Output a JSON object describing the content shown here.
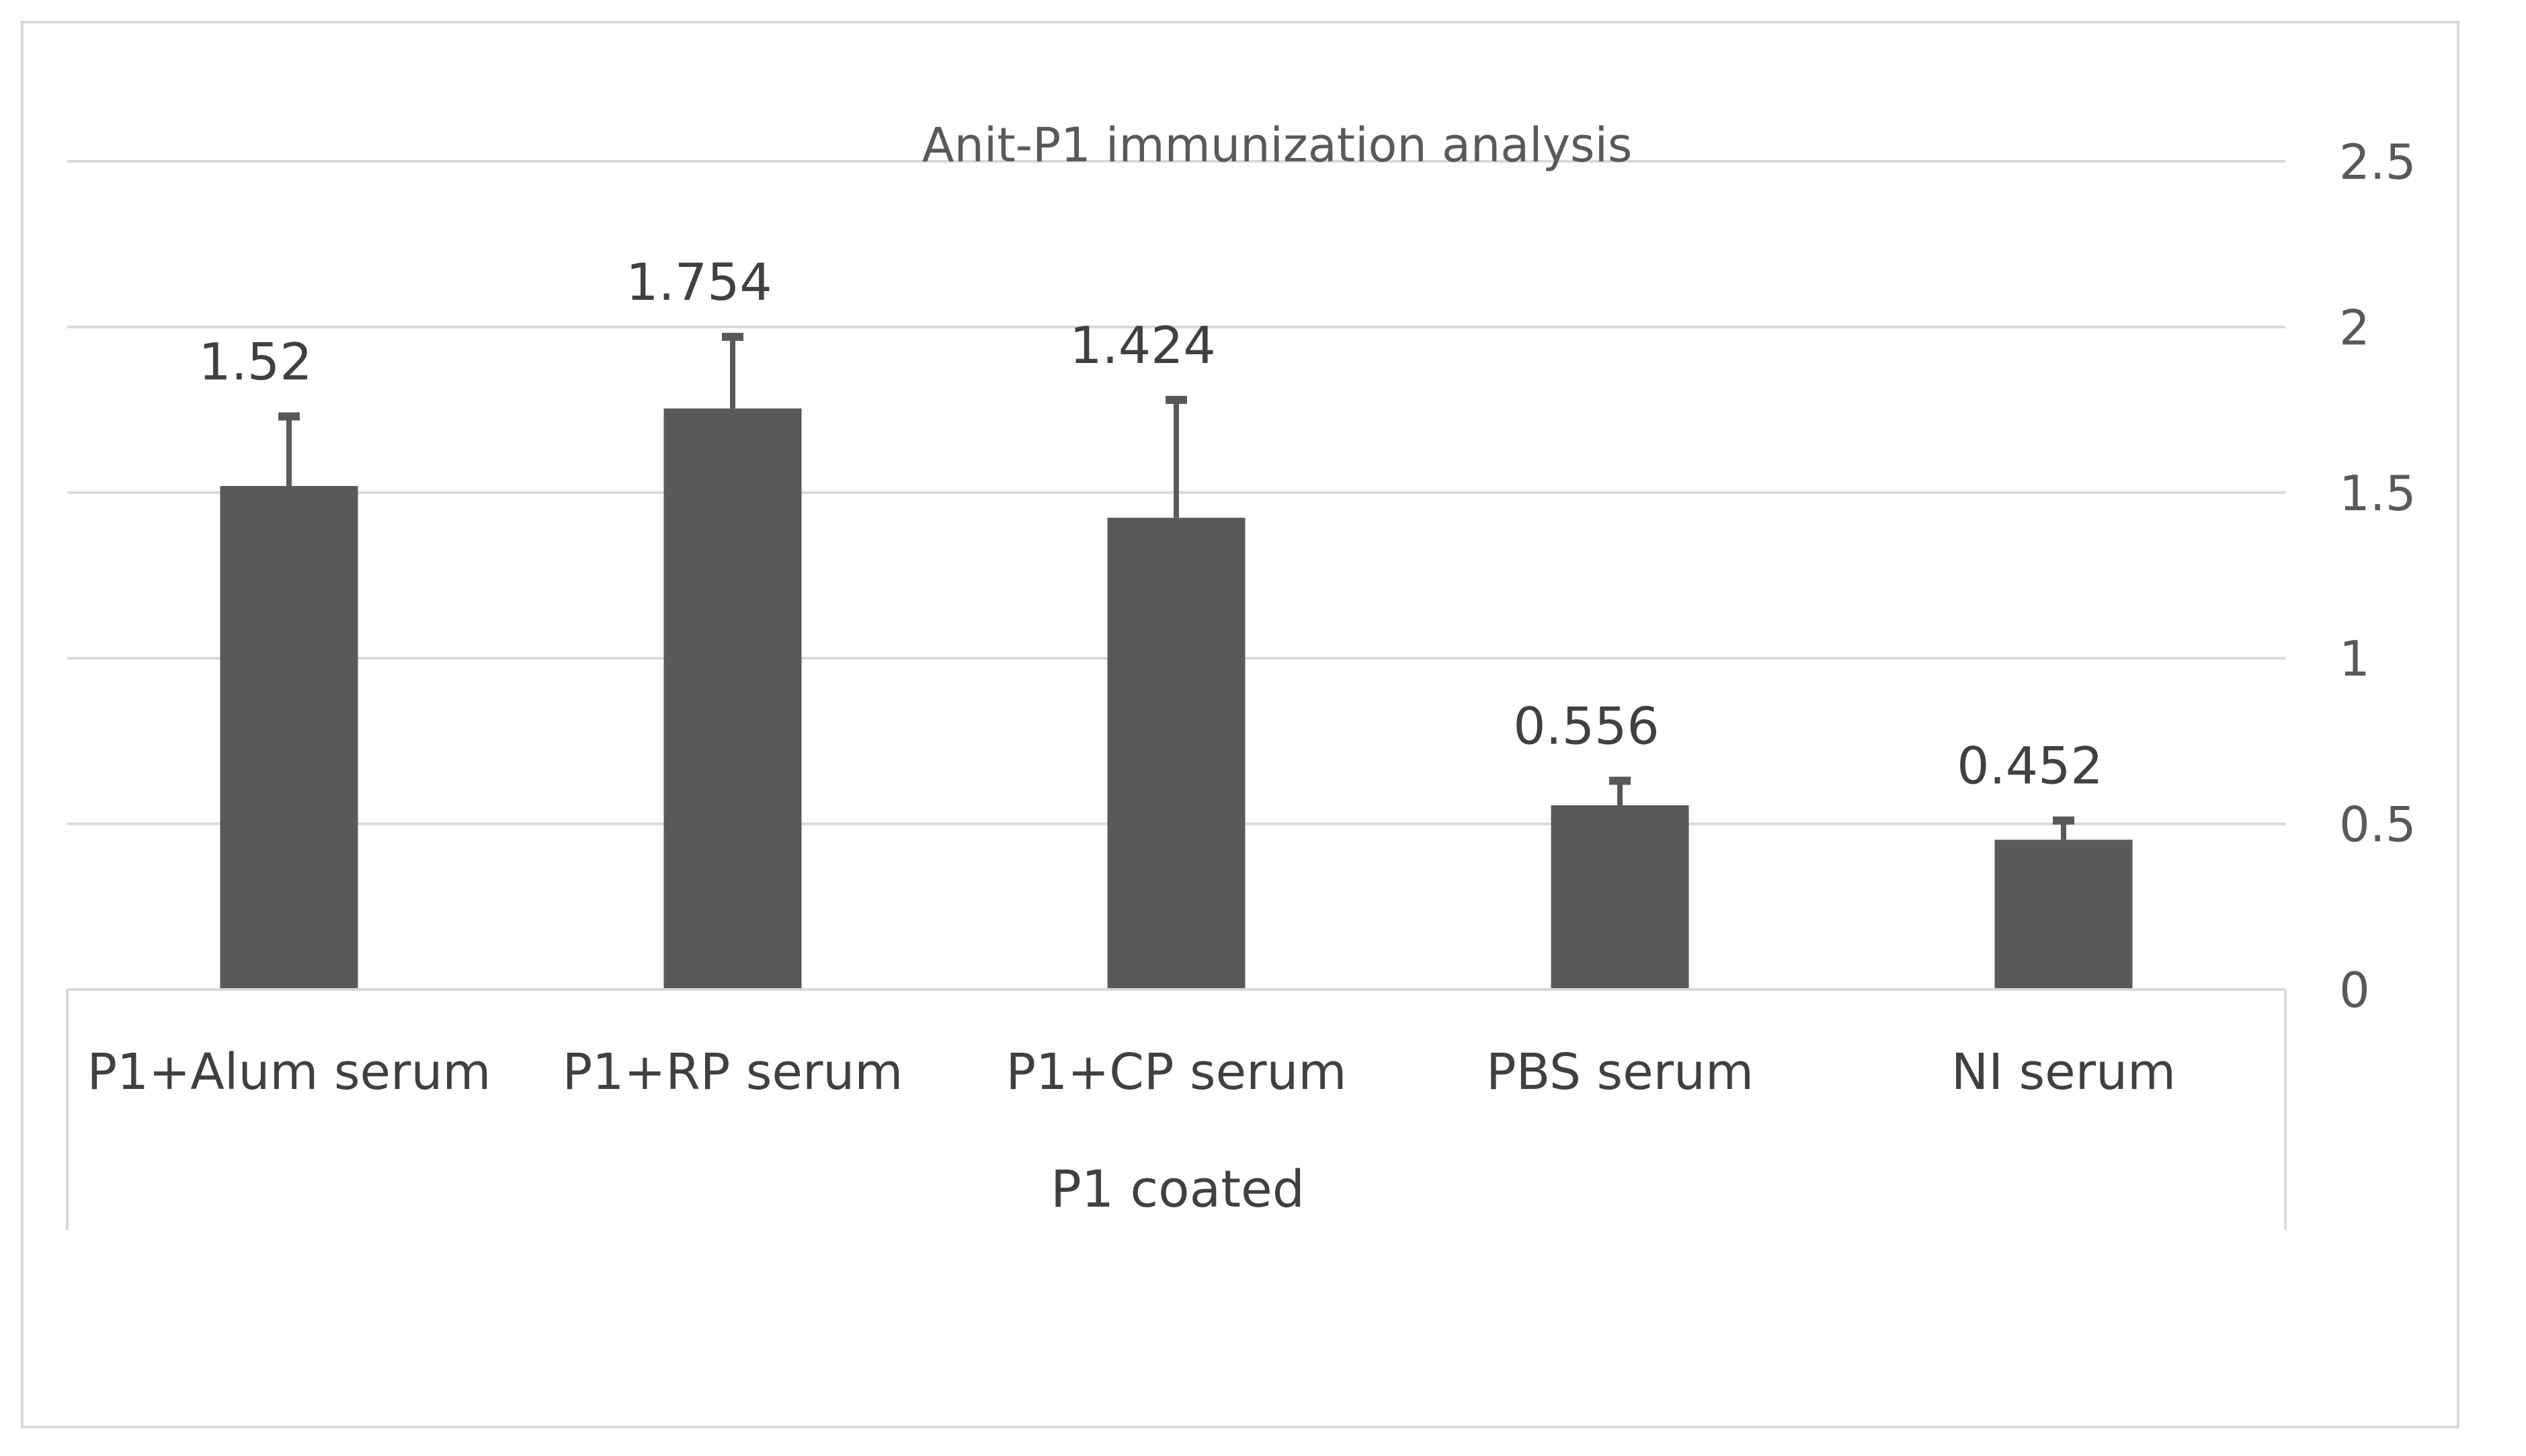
{
  "chart_data": {
    "type": "bar",
    "title": "Anit-P1 immunization analysis",
    "categories": [
      "P1+Alum serum",
      "P1+RP serum",
      "P1+CP serum",
      "PBS serum",
      "NI serum"
    ],
    "group_label": "P1  coated",
    "values": [
      1.52,
      1.754,
      1.424,
      0.556,
      0.452
    ],
    "data_labels": [
      "1.52",
      "1.754",
      "1.424",
      "0.556",
      "0.452"
    ],
    "error_upper": [
      1.73,
      1.97,
      1.78,
      0.63,
      0.51
    ],
    "ylim": [
      0,
      2.5
    ],
    "y_ticks": [
      {
        "value": 0,
        "label": "0"
      },
      {
        "value": 0.5,
        "label": "0.5"
      },
      {
        "value": 1,
        "label": "1"
      },
      {
        "value": 1.5,
        "label": "1.5"
      },
      {
        "value": 2,
        "label": "2"
      },
      {
        "value": 2.5,
        "label": "2.5"
      }
    ],
    "y_axis_side": "right",
    "grid": true,
    "bar_color": "#595959",
    "grid_color": "#d9d9d9",
    "text_color": "#595959",
    "label_color": "#404040"
  }
}
